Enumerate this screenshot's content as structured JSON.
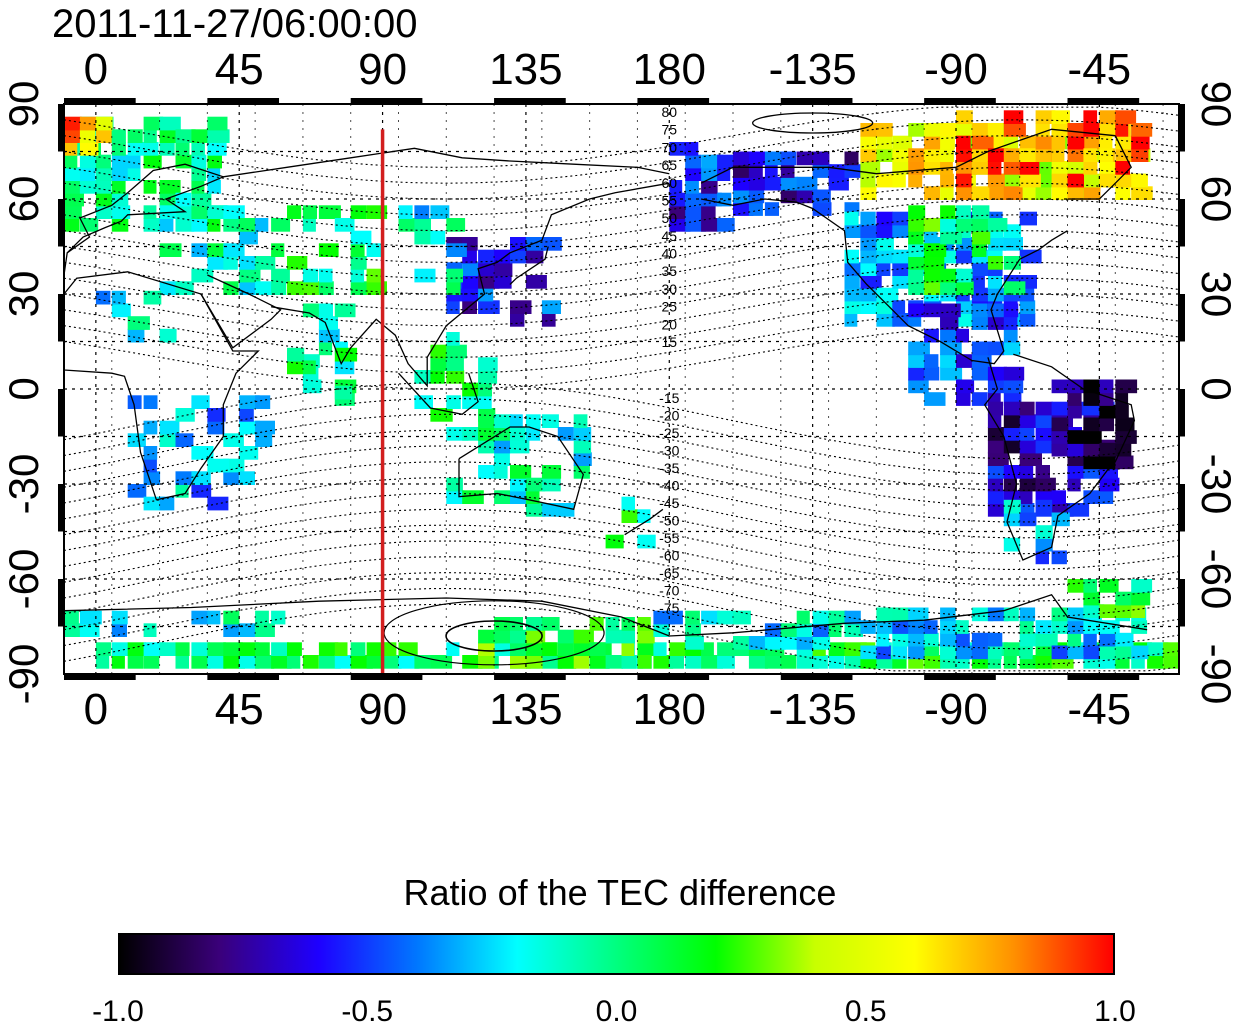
{
  "title": "2011-11-27/06:00:00",
  "map": {
    "lon_labels": [
      "0",
      "45",
      "90",
      "135",
      "180",
      "-135",
      "-90",
      "-45"
    ],
    "lon_values": [
      0,
      45,
      90,
      135,
      180,
      225,
      270,
      315
    ],
    "lon_range": [
      -10,
      340
    ],
    "lat_labels": [
      "90",
      "60",
      "30",
      "0",
      "-30",
      "-60",
      "-90"
    ],
    "lat_values": [
      90,
      60,
      30,
      0,
      -30,
      -60,
      -90
    ],
    "lat_range": [
      -90,
      90
    ],
    "grid": true,
    "terminator_longitude": 90,
    "terminator_color": "#d21f1f",
    "contour_labels_north": [
      "80",
      "75",
      "70",
      "65",
      "60",
      "55",
      "50",
      "45",
      "40",
      "35",
      "30",
      "25",
      "20",
      "15"
    ],
    "contour_labels_south": [
      "-15",
      "-20",
      "-25",
      "-30",
      "-35",
      "-40",
      "-45",
      "-50",
      "-55",
      "-60",
      "-65",
      "-70",
      "-75"
    ]
  },
  "colorbar": {
    "title": "Ratio of the TEC difference",
    "min": -1.0,
    "max": 1.0,
    "tick_labels": [
      "-1.0",
      "-0.5",
      "0.0",
      "0.5",
      "1.0"
    ],
    "tick_values": [
      -1.0,
      -0.5,
      0.0,
      0.5,
      1.0
    ],
    "colors": [
      "#000000",
      "#3a007a",
      "#1e00ff",
      "#0078ff",
      "#00ffff",
      "#00ff7f",
      "#00ff00",
      "#c8ff00",
      "#ffff00",
      "#ff9000",
      "#ff0000"
    ]
  }
}
